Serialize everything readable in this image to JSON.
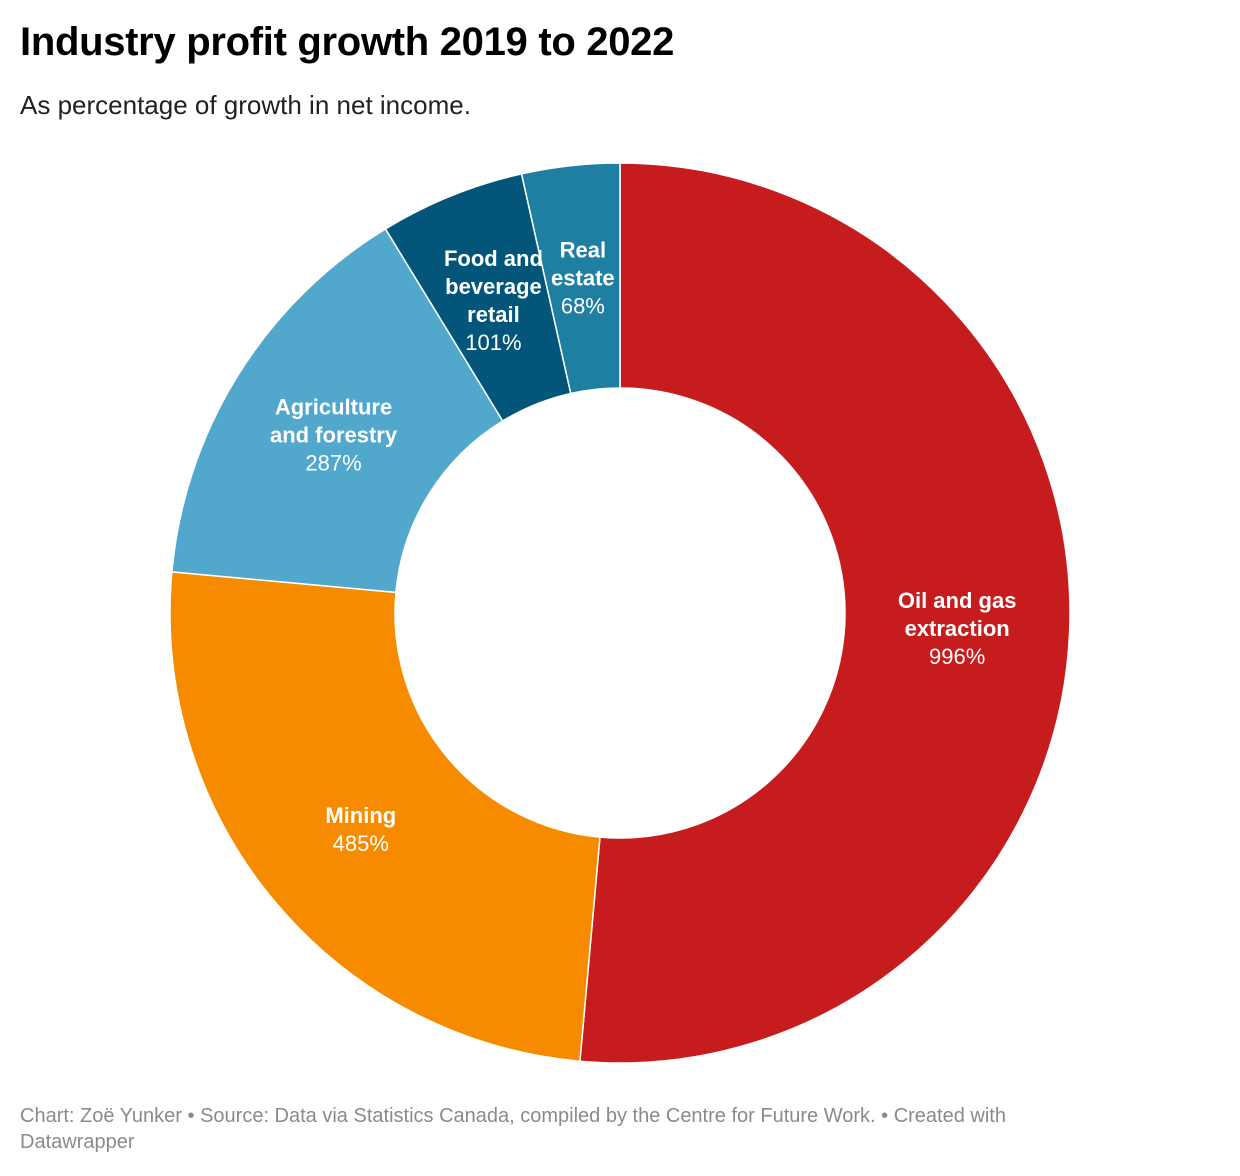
{
  "title": "Industry profit growth 2019 to 2022",
  "subtitle": "As percentage of growth in net income.",
  "chart_data": {
    "type": "pie",
    "donut": true,
    "slices": [
      {
        "label": "Oil and gas extraction",
        "label_lines": [
          "Oil and gas",
          "extraction"
        ],
        "value": 996,
        "value_label": "996%",
        "color": "#c71c1e"
      },
      {
        "label": "Mining",
        "label_lines": [
          "Mining"
        ],
        "value": 485,
        "value_label": "485%",
        "color": "#f68b00"
      },
      {
        "label": "Agriculture and forestry",
        "label_lines": [
          "Agriculture",
          "and forestry"
        ],
        "value": 287,
        "value_label": "287%",
        "color": "#51a8cc"
      },
      {
        "label": "Food and beverage retail",
        "label_lines": [
          "Food and",
          "beverage",
          "retail"
        ],
        "value": 101,
        "value_label": "101%",
        "color": "#035679"
      },
      {
        "label": "Real estate",
        "label_lines": [
          "Real",
          "estate"
        ],
        "value": 68,
        "value_label": "68%",
        "color": "#1f7fa2"
      }
    ]
  },
  "footer": {
    "chart_credit": "Chart: Zoë Yunker",
    "source": "Source: Data via Statistics Canada, compiled by the Centre for Future Work.",
    "created_with": "Created with Datawrapper",
    "separator": " • "
  }
}
